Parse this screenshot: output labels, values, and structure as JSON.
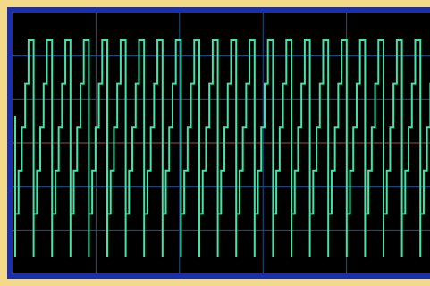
{
  "screen": {
    "border_color": "#f3d98a",
    "frame_color": "#1c2fa8",
    "background": "#000000",
    "grid_color": "#1f4f8f",
    "center_line_color": "#a0503a",
    "trace_color": "#45e3a6"
  }
}
